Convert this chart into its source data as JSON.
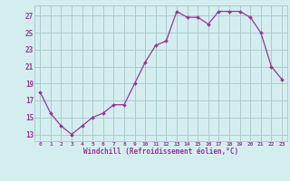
{
  "x": [
    0,
    1,
    2,
    3,
    4,
    5,
    6,
    7,
    8,
    9,
    10,
    11,
    12,
    13,
    14,
    15,
    16,
    17,
    18,
    19,
    20,
    21,
    22,
    23
  ],
  "y": [
    18.0,
    15.5,
    14.0,
    13.0,
    14.0,
    15.0,
    15.5,
    16.5,
    16.5,
    19.0,
    21.5,
    23.5,
    24.0,
    27.5,
    26.8,
    26.8,
    26.0,
    27.5,
    27.5,
    27.5,
    26.8,
    25.0,
    21.0,
    19.5
  ],
  "line_color": "#993399",
  "marker": "D",
  "marker_size": 2.0,
  "bg_color": "#d4eef0",
  "grid_color": "#aacccc",
  "tick_color": "#993399",
  "xlabel": "Windchill (Refroidissement éolien,°C)",
  "xlabel_color": "#993399",
  "ylabel_ticks": [
    13,
    15,
    17,
    19,
    21,
    23,
    25,
    27
  ],
  "xlim": [
    -0.5,
    23.5
  ],
  "ylim": [
    12.2,
    28.2
  ],
  "title": ""
}
